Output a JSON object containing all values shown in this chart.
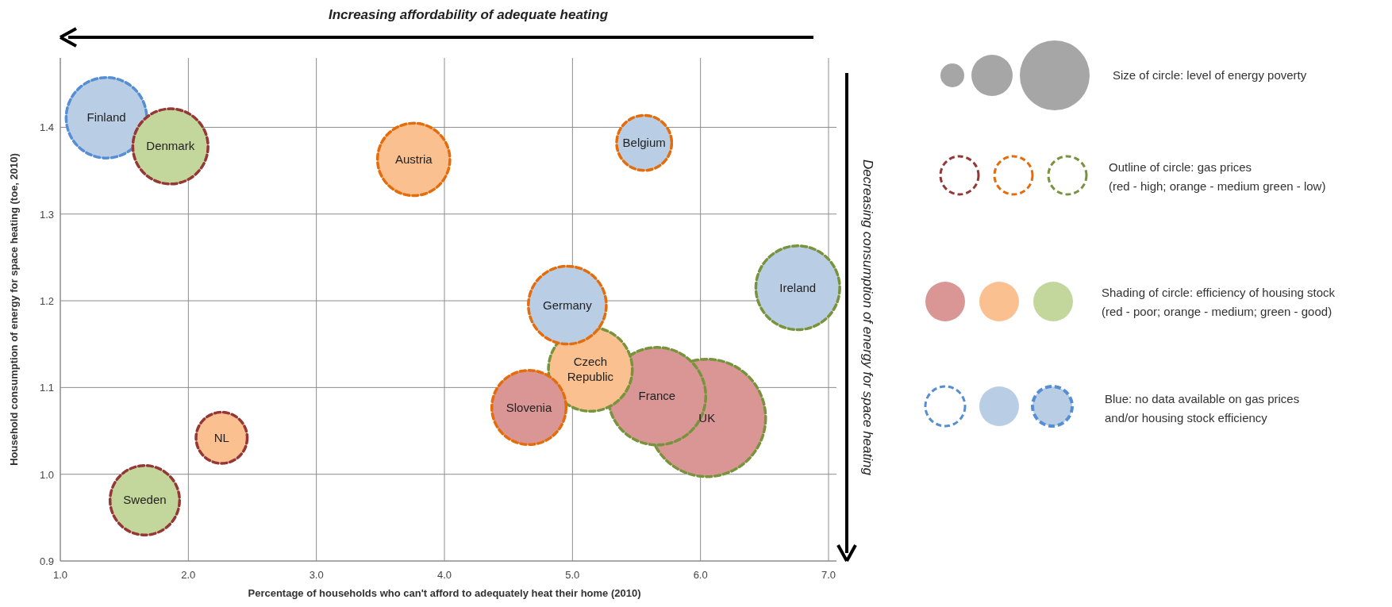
{
  "chart_data": {
    "type": "bubble",
    "xlabel": "Percentage of households who can't afford to adequately heat their home (2010)",
    "ylabel": "Household consumption of energy for space heating (toe, 2010)",
    "xlim": [
      1.0,
      7.0
    ],
    "ylim": [
      0.9,
      1.48
    ],
    "xticks": [
      {
        "value": 1,
        "label": "1.0"
      },
      {
        "value": 2,
        "label": "2.0"
      },
      {
        "value": 3,
        "label": "3.0"
      },
      {
        "value": 4,
        "label": "4.0"
      },
      {
        "value": 5,
        "label": "5.0"
      },
      {
        "value": 6,
        "label": "6.0"
      },
      {
        "value": 7,
        "label": "7.0"
      }
    ],
    "yticks": [
      0.9,
      {
        "value": 1,
        "label": "1.0"
      },
      1.1,
      1.2,
      1.3,
      1.4
    ],
    "grid": true,
    "marker": "circle",
    "line_style": "dashed",
    "series": [
      {
        "color": "#953735",
        "x": [
          1.86,
          2.26,
          1.66
        ],
        "values": [
          1.378,
          1.042,
          0.97
        ],
        "sizes": [
          0.41,
          0.19,
          0.35
        ],
        "colors": [
          "#c3d69b",
          "#fac090",
          "#c3d69b"
        ],
        "value_labels": [
          "Denmark",
          "NL",
          "Sweden"
        ]
      },
      {
        "color": "#e46c0a",
        "x": [
          3.76,
          5.56,
          4.96,
          4.66
        ],
        "values": [
          1.363,
          1.382,
          1.195,
          1.077
        ],
        "sizes": [
          0.38,
          0.22,
          0.44,
          0.4
        ],
        "colors": [
          "#fac090",
          "#b9cde5",
          "#b9cde5",
          "#d99694"
        ],
        "value_labels": [
          "Austria",
          "Belgium",
          "Germany",
          "Slovenia"
        ]
      },
      {
        "color": "#77933c",
        "x": [
          6.76,
          5.14,
          5.66,
          6.05
        ],
        "values": [
          1.215,
          1.121,
          1.09,
          1.065
        ],
        "sizes": [
          0.51,
          0.51,
          0.69,
          1
        ],
        "colors": [
          "#b9cde5",
          "#fac090",
          "#d99694",
          "#d99694"
        ],
        "value_labels": [
          "Ireland",
          "Czech\nRepublic",
          "France",
          "UK"
        ]
      },
      {
        "color": "#558ed5",
        "x": [
          1.36
        ],
        "values": [
          1.411
        ],
        "sizes": [
          0.47
        ],
        "colors": [
          "#b9cde5"
        ],
        "value_labels": [
          "Finland"
        ]
      }
    ],
    "annotations": [
      "Increasing affordability of adequate heating",
      "Decreasing consumption of energy for space heating",
      "Size of circle: level of energy poverty",
      "Outline of circle: gas prices\n(red - high; orange - medium green - low)",
      "Shading of circle: efficiency of housing stock\n(red - poor; orange - medium; green - good)",
      "Blue: no data available on gas prices\nand/or housing stock efficiency"
    ]
  }
}
